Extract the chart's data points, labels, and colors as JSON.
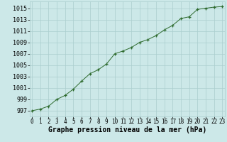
{
  "x": [
    0,
    1,
    2,
    3,
    4,
    5,
    6,
    7,
    8,
    9,
    10,
    11,
    12,
    13,
    14,
    15,
    16,
    17,
    18,
    19,
    20,
    21,
    22,
    23
  ],
  "y": [
    997.0,
    997.3,
    997.8,
    999.0,
    999.7,
    1000.8,
    1002.2,
    1003.5,
    1004.2,
    1005.2,
    1007.0,
    1007.5,
    1008.1,
    1009.0,
    1009.5,
    1010.2,
    1011.2,
    1012.0,
    1013.2,
    1013.5,
    1014.8,
    1015.0,
    1015.2,
    1015.3
  ],
  "line_color": "#2d6a2d",
  "marker": "+",
  "bg_color": "#cce8e8",
  "grid_color": "#aacece",
  "xlabel": "Graphe pression niveau de la mer (hPa)",
  "xlabel_fontsize": 7.0,
  "ylabel_ticks": [
    997,
    999,
    1001,
    1003,
    1005,
    1007,
    1009,
    1011,
    1013,
    1015
  ],
  "xticks": [
    0,
    1,
    2,
    3,
    4,
    5,
    6,
    7,
    8,
    9,
    10,
    11,
    12,
    13,
    14,
    15,
    16,
    17,
    18,
    19,
    20,
    21,
    22,
    23
  ],
  "ylim": [
    996.0,
    1016.2
  ],
  "xlim": [
    -0.3,
    23.3
  ],
  "tick_fontsize": 5.5,
  "ytick_fontsize": 6.0
}
